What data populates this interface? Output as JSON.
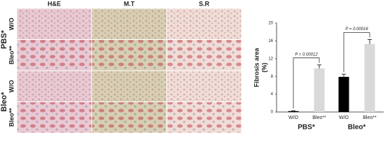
{
  "panel": {
    "columns": [
      "H&E",
      "M.T",
      "S.R"
    ],
    "row_labels": [
      "W/O",
      "Bleo**",
      "W/O",
      "Bleo**"
    ],
    "group_labels": [
      "PBS*",
      "Bleo*"
    ]
  },
  "chart_data": {
    "type": "bar",
    "ylabel": [
      "Fibrosis area",
      "(%)"
    ],
    "categories": [
      "W/O",
      "Bleo**",
      "W/O",
      "Bleo**"
    ],
    "groups": [
      "PBS*",
      "Bleo*"
    ],
    "values": [
      0.2,
      9.8,
      7.9,
      15.3
    ],
    "errors": [
      0.1,
      0.8,
      0.6,
      1.0
    ],
    "colors": [
      "#000000",
      "#d9d9d9",
      "#000000",
      "#d9d9d9"
    ],
    "annotations": [
      "P = 0.00012",
      "P = 0.00016"
    ],
    "ylim": [
      0,
      20
    ],
    "yticks": [
      0,
      4,
      8,
      12,
      16,
      20
    ]
  }
}
